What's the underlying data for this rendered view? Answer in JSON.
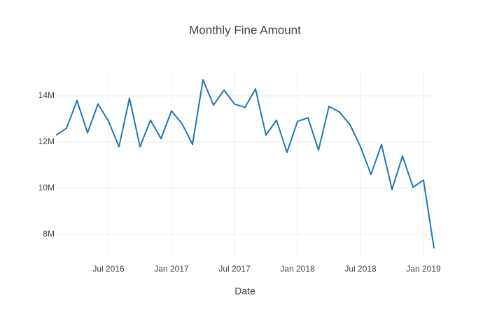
{
  "chart_data": {
    "type": "line",
    "title": "Monthly Fine Amount",
    "x_label": "Date",
    "x": [
      "2016-02",
      "2016-03",
      "2016-04",
      "2016-05",
      "2016-06",
      "2016-07",
      "2016-08",
      "2016-09",
      "2016-10",
      "2016-11",
      "2016-12",
      "2017-01",
      "2017-02",
      "2017-03",
      "2017-04",
      "2017-05",
      "2017-06",
      "2017-07",
      "2017-08",
      "2017-09",
      "2017-10",
      "2017-11",
      "2017-12",
      "2018-01",
      "2018-02",
      "2018-03",
      "2018-04",
      "2018-05",
      "2018-06",
      "2018-07",
      "2018-08",
      "2018-09",
      "2018-10",
      "2018-11",
      "2018-12",
      "2019-01",
      "2019-02"
    ],
    "series": [
      {
        "name": "Fine Amount",
        "color": "#1f77b4",
        "values": [
          12300000,
          12600000,
          13800000,
          12400000,
          13650000,
          12900000,
          11800000,
          13900000,
          11800000,
          12950000,
          12150000,
          13350000,
          12800000,
          11900000,
          14700000,
          13600000,
          14250000,
          13650000,
          13500000,
          14300000,
          12300000,
          12950000,
          11550000,
          12900000,
          13050000,
          11650000,
          13550000,
          13300000,
          12750000,
          11800000,
          10600000,
          11900000,
          9950000,
          11400000,
          10050000,
          10350000,
          7400000
        ]
      }
    ],
    "xlim": [
      "2016-02",
      "2019-02"
    ],
    "xticks": [
      {
        "value": "2016-07",
        "label": "Jul 2016"
      },
      {
        "value": "2017-01",
        "label": "Jan 2017"
      },
      {
        "value": "2017-07",
        "label": "Jul 2017"
      },
      {
        "value": "2018-01",
        "label": "Jan 2018"
      },
      {
        "value": "2018-07",
        "label": "Jul 2018"
      },
      {
        "value": "2019-01",
        "label": "Jan 2019"
      }
    ],
    "ylim": [
      6940000,
      15120000
    ],
    "yticks": [
      {
        "value": 8000000,
        "label": "8M"
      },
      {
        "value": 10000000,
        "label": "10M"
      },
      {
        "value": 12000000,
        "label": "12M"
      },
      {
        "value": 14000000,
        "label": "14M"
      }
    ],
    "grid": true
  }
}
